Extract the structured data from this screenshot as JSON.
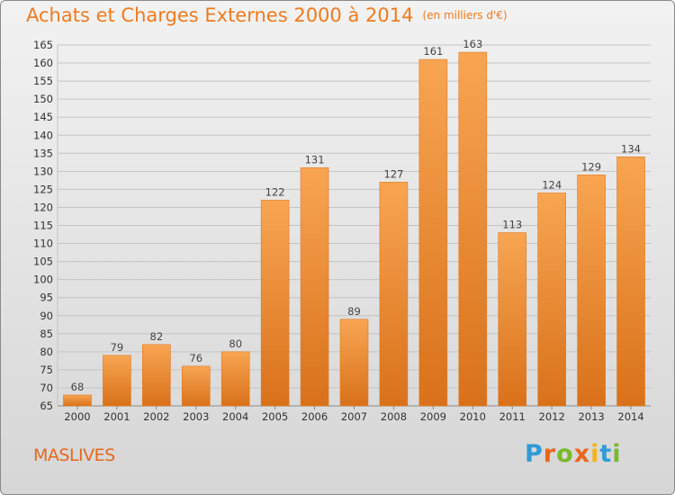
{
  "title": "Achats et Charges Externes 2000 à 2014",
  "subtitle": "(en milliers d'€)",
  "commune": "MASLIVES",
  "logo": {
    "text": "Proxiti",
    "letters": [
      {
        "ch": "P",
        "color": "#2f9bd6"
      },
      {
        "ch": "r",
        "color": "#e8671b"
      },
      {
        "ch": "o",
        "color": "#7ab929"
      },
      {
        "ch": "x",
        "color": "#e8671b"
      },
      {
        "ch": "i",
        "color": "#f2b516"
      },
      {
        "ch": "t",
        "color": "#2f9bd6"
      },
      {
        "ch": "i",
        "color": "#7ab929"
      }
    ]
  },
  "colors": {
    "accent": "#ee7b1f",
    "bar_top": "#f8a552",
    "bar_bottom": "#d9711a"
  },
  "chart_data": {
    "type": "bar",
    "title": "Achats et Charges Externes 2000 à 2014",
    "subtitle": "(en milliers d'€)",
    "categories": [
      "2000",
      "2001",
      "2002",
      "2003",
      "2004",
      "2005",
      "2006",
      "2007",
      "2008",
      "2009",
      "2010",
      "2011",
      "2012",
      "2013",
      "2014"
    ],
    "values": [
      68,
      79,
      82,
      76,
      80,
      122,
      131,
      89,
      127,
      161,
      163,
      113,
      124,
      129,
      134
    ],
    "ylim": [
      65,
      165
    ],
    "yticks": [
      65,
      70,
      75,
      80,
      85,
      90,
      95,
      100,
      105,
      110,
      115,
      120,
      125,
      130,
      135,
      140,
      145,
      150,
      155,
      160,
      165
    ],
    "xlabel": "",
    "ylabel": "",
    "grid": true
  }
}
